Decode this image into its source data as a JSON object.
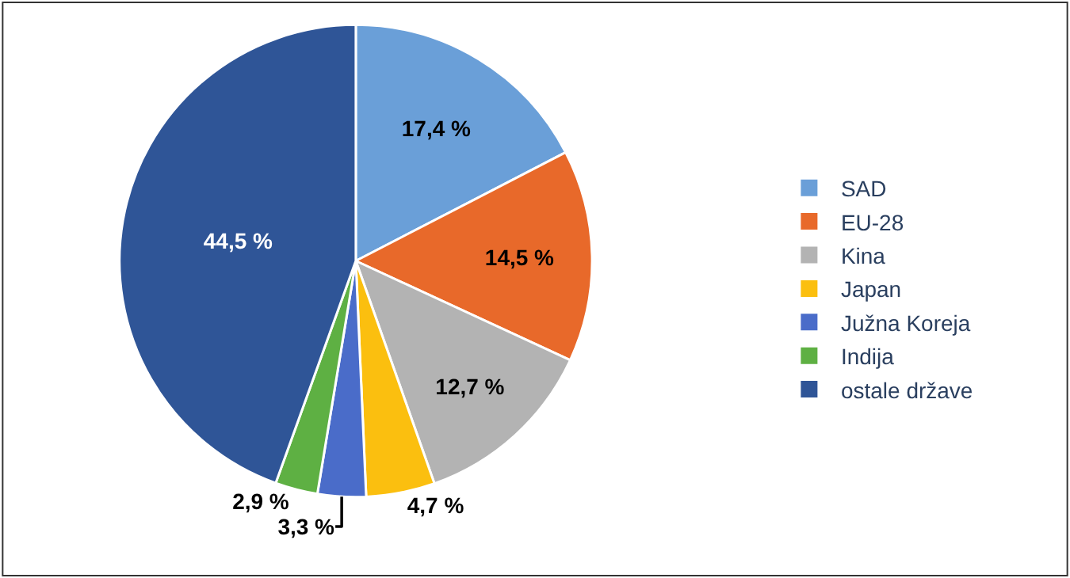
{
  "chart_data": {
    "type": "pie",
    "categories": [
      "SAD",
      "EU-28",
      "Kina",
      "Japan",
      "Južna Koreja",
      "Indija",
      "ostale države"
    ],
    "values": [
      17.4,
      14.5,
      12.7,
      4.7,
      3.3,
      2.9,
      44.5
    ],
    "value_labels": [
      "17,4 %",
      "14,5 %",
      "12,7 %",
      "4,7 %",
      "3,3 %",
      "2,9 %",
      "44,5 %"
    ],
    "colors": [
      "#6a9fd8",
      "#e8692a",
      "#b3b3b3",
      "#fbbf0f",
      "#4a6cc9",
      "#5eb043",
      "#2f5597"
    ],
    "legend": "right"
  }
}
